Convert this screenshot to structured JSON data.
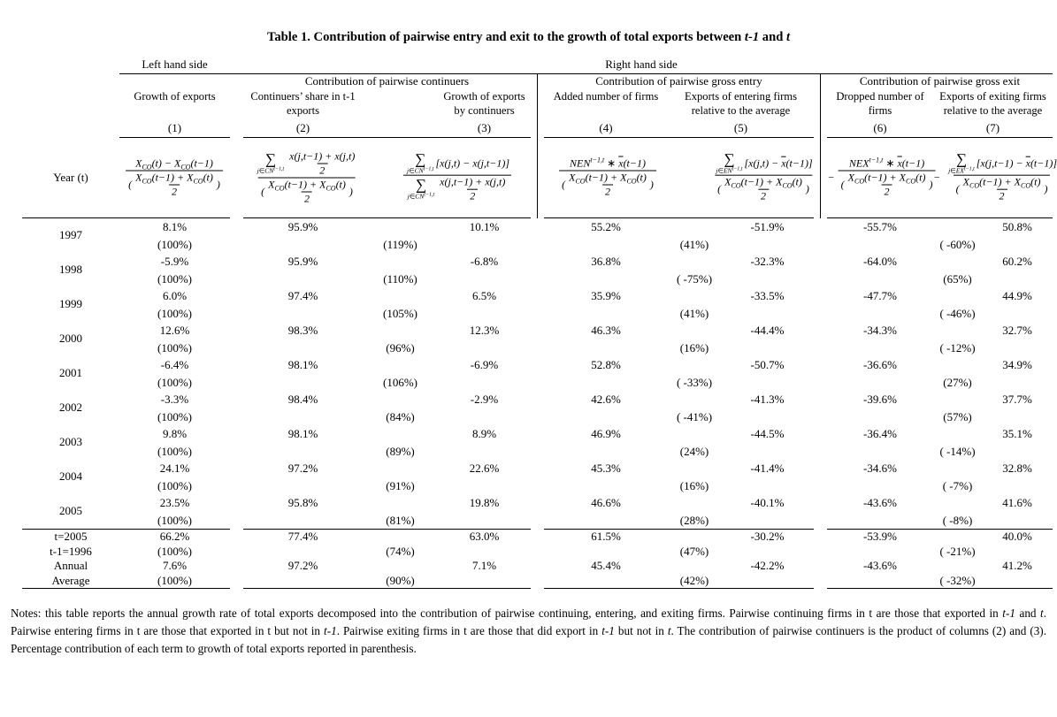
{
  "title_segments": [
    {
      "text": "Table 1. Contribution of pairwise entry and exit to the growth of total exports between "
    },
    {
      "text": "t-1",
      "italic": true
    },
    {
      "text": " and "
    },
    {
      "text": "t",
      "italic": true
    }
  ],
  "header": {
    "lhs": "Left hand side",
    "rhs": "Right hand side",
    "col1_title": "Growth of exports",
    "col1_num": "(1)",
    "year_label": "Year (t)",
    "groups": [
      {
        "label": "Contribution of pairwise continuers",
        "cols": [
          {
            "title": "Continuers’ share in t-1 exports",
            "num": "(2)"
          },
          {
            "title": "Growth of exports by continuers",
            "num": "(3)"
          }
        ]
      },
      {
        "label": "Contribution of pairwise gross entry",
        "cols": [
          {
            "title": "Added number of firms",
            "num": "(4)"
          },
          {
            "title": "Exports of entering firms relative to the average",
            "num": "(5)"
          }
        ]
      },
      {
        "label": "Contribution of pairwise gross exit",
        "cols": [
          {
            "title": "Dropped number of firms",
            "num": "(6)"
          },
          {
            "title": "Exports of exiting firms relative to the average",
            "num": "(7)"
          }
        ]
      }
    ]
  },
  "formulas": {
    "den": {
      "t": "row",
      "c": [
        "(",
        {
          "t": "frac",
          "n": {
            "t": "row",
            "c": [
              "X",
              {
                "t": "sub",
                "v": "CO"
              },
              "(t−1) + X",
              {
                "t": "sub",
                "v": "CO"
              },
              "(t)"
            ]
          },
          "d": "2"
        },
        ")"
      ]
    },
    "c1": {
      "t": "frac",
      "n": {
        "t": "row",
        "c": [
          "X",
          {
            "t": "sub",
            "v": "CO"
          },
          "(t) − X",
          {
            "t": "sub",
            "v": "CO"
          },
          "(t−1)"
        ]
      },
      "d": {
        "t": "ref",
        "k": "den"
      }
    },
    "c2": {
      "t": "frac",
      "n": {
        "t": "row",
        "c": [
          {
            "t": "sum",
            "b": {
              "t": "row",
              "c": [
                "j∈CN",
                {
                  "t": "sup",
                  "v": "t−1,t"
                }
              ]
            }
          },
          {
            "t": "frac",
            "n": "x(j,t−1) + x(j,t)",
            "d": "2"
          }
        ]
      },
      "d": {
        "t": "ref",
        "k": "den"
      }
    },
    "c3": {
      "t": "frac",
      "n": {
        "t": "row",
        "c": [
          {
            "t": "sum",
            "b": {
              "t": "row",
              "c": [
                "j∈CN",
                {
                  "t": "sup",
                  "v": "t−1,t"
                }
              ]
            }
          },
          "[x(j,t) − x(j,t−1)]"
        ]
      },
      "d": {
        "t": "row",
        "c": [
          {
            "t": "sum",
            "b": {
              "t": "row",
              "c": [
                "j∈CN",
                {
                  "t": "sup",
                  "v": "t−1,t"
                }
              ]
            }
          },
          {
            "t": "frac",
            "n": "x(j,t−1) + x(j,t)",
            "d": "2"
          }
        ]
      }
    },
    "c4": {
      "t": "frac",
      "n": {
        "t": "row",
        "c": [
          "NEN",
          {
            "t": "sup",
            "v": "t−1,t"
          },
          " ∗ ",
          {
            "t": "bar",
            "v": "x"
          },
          "(t−1)"
        ]
      },
      "d": {
        "t": "ref",
        "k": "den"
      }
    },
    "c5": {
      "t": "frac",
      "n": {
        "t": "row",
        "c": [
          {
            "t": "sum",
            "b": {
              "t": "row",
              "c": [
                "j∈EN",
                {
                  "t": "sup",
                  "v": "t−1,t"
                }
              ]
            }
          },
          "[x(j,t) − ",
          {
            "t": "bar",
            "v": "x"
          },
          "(t−1)]"
        ]
      },
      "d": {
        "t": "ref",
        "k": "den"
      }
    },
    "c6": {
      "t": "row",
      "c": [
        "− ",
        {
          "t": "frac",
          "n": {
            "t": "row",
            "c": [
              "NEX",
              {
                "t": "sup",
                "v": "t−1,t"
              },
              " ∗ ",
              {
                "t": "bar",
                "v": "x"
              },
              "(t−1)"
            ]
          },
          "d": {
            "t": "ref",
            "k": "den"
          }
        }
      ]
    },
    "c7": {
      "t": "row",
      "c": [
        "− ",
        {
          "t": "frac",
          "n": {
            "t": "row",
            "c": [
              {
                "t": "sum",
                "b": {
                  "t": "row",
                  "c": [
                    "j∈EX",
                    {
                      "t": "sup",
                      "v": "t−1,t"
                    }
                  ]
                }
              },
              "[x(j,t−1) − ",
              {
                "t": "bar",
                "v": "x"
              },
              "(t−1)]"
            ]
          },
          "d": {
            "t": "ref",
            "k": "den"
          }
        }
      ]
    }
  },
  "rows": [
    {
      "section": "body",
      "year": [
        "1997"
      ],
      "c1": "8.1%",
      "c1p": "(100%)",
      "c2": "95.9%",
      "c23p": "(119%)",
      "c3": "10.1%",
      "c4": "55.2%",
      "c45p": "(41%)",
      "c5": "-51.9%",
      "c6": "-55.7%",
      "c67p": "( -60%)",
      "c7": "50.8%"
    },
    {
      "section": "body",
      "year": [
        "1998"
      ],
      "c1": "-5.9%",
      "c1p": "(100%)",
      "c2": "95.9%",
      "c23p": "(110%)",
      "c3": "-6.8%",
      "c4": "36.8%",
      "c45p": "( -75%)",
      "c5": "-32.3%",
      "c6": "-64.0%",
      "c67p": "(65%)",
      "c7": "60.2%"
    },
    {
      "section": "body",
      "year": [
        "1999"
      ],
      "c1": "6.0%",
      "c1p": "(100%)",
      "c2": "97.4%",
      "c23p": "(105%)",
      "c3": "6.5%",
      "c4": "35.9%",
      "c45p": "(41%)",
      "c5": "-33.5%",
      "c6": "-47.7%",
      "c67p": "( -46%)",
      "c7": "44.9%"
    },
    {
      "section": "body",
      "year": [
        "2000"
      ],
      "c1": "12.6%",
      "c1p": "(100%)",
      "c2": "98.3%",
      "c23p": "(96%)",
      "c3": "12.3%",
      "c4": "46.3%",
      "c45p": "(16%)",
      "c5": "-44.4%",
      "c6": "-34.3%",
      "c67p": "( -12%)",
      "c7": "32.7%"
    },
    {
      "section": "body",
      "year": [
        "2001"
      ],
      "c1": "-6.4%",
      "c1p": "(100%)",
      "c2": "98.1%",
      "c23p": "(106%)",
      "c3": "-6.9%",
      "c4": "52.8%",
      "c45p": "( -33%)",
      "c5": "-50.7%",
      "c6": "-36.6%",
      "c67p": "(27%)",
      "c7": "34.9%"
    },
    {
      "section": "body",
      "year": [
        "2002"
      ],
      "c1": "-3.3%",
      "c1p": "(100%)",
      "c2": "98.4%",
      "c23p": "(84%)",
      "c3": "-2.9%",
      "c4": "42.6%",
      "c45p": "( -41%)",
      "c5": "-41.3%",
      "c6": "-39.6%",
      "c67p": "(57%)",
      "c7": "37.7%"
    },
    {
      "section": "body",
      "year": [
        "2003"
      ],
      "c1": "9.8%",
      "c1p": "(100%)",
      "c2": "98.1%",
      "c23p": "(89%)",
      "c3": "8.9%",
      "c4": "46.9%",
      "c45p": "(24%)",
      "c5": "-44.5%",
      "c6": "-36.4%",
      "c67p": "( -14%)",
      "c7": "35.1%"
    },
    {
      "section": "body",
      "year": [
        "2004"
      ],
      "c1": "24.1%",
      "c1p": "(100%)",
      "c2": "97.2%",
      "c23p": "(91%)",
      "c3": "22.6%",
      "c4": "45.3%",
      "c45p": "(16%)",
      "c5": "-41.4%",
      "c6": "-34.6%",
      "c67p": "( -7%)",
      "c7": "32.8%"
    },
    {
      "section": "body",
      "year": [
        "2005"
      ],
      "c1": "23.5%",
      "c1p": "(100%)",
      "c2": "95.8%",
      "c23p": "(81%)",
      "c3": "19.8%",
      "c4": "46.6%",
      "c45p": "(28%)",
      "c5": "-40.1%",
      "c6": "-43.6%",
      "c67p": "( -8%)",
      "c7": "41.6%"
    },
    {
      "section": "summary",
      "year": [
        "t=2005",
        "t-1=1996"
      ],
      "c1": "66.2%",
      "c1p": "(100%)",
      "c2": "77.4%",
      "c23p": "(74%)",
      "c3": "63.0%",
      "c4": "61.5%",
      "c45p": "(47%)",
      "c5": "-30.2%",
      "c6": "-53.9%",
      "c67p": "( -21%)",
      "c7": "40.0%"
    },
    {
      "section": "summary",
      "year": [
        "Annual",
        "Average"
      ],
      "c1": "7.6%",
      "c1p": "(100%)",
      "c2": "97.2%",
      "c23p": "(90%)",
      "c3": "7.1%",
      "c4": "45.4%",
      "c45p": "(42%)",
      "c5": "-42.2%",
      "c6": "-43.6%",
      "c67p": "( -32%)",
      "c7": "41.2%"
    }
  ],
  "notes_segments": [
    {
      "text": "Notes: this table reports the annual growth rate of total exports decomposed into the contribution of pairwise continuing, entering, and exiting firms. Pairwise continuing firms in t are those that exported in "
    },
    {
      "text": "t-1",
      "italic": true
    },
    {
      "text": " and "
    },
    {
      "text": "t",
      "italic": true
    },
    {
      "text": ". Pairwise entering firms in t are those that exported in t but not in "
    },
    {
      "text": "t-1",
      "italic": true
    },
    {
      "text": ". Pairwise exiting firms in t are those that did export in "
    },
    {
      "text": "t-1",
      "italic": true
    },
    {
      "text": " but not in "
    },
    {
      "text": "t",
      "italic": true
    },
    {
      "text": ".  The contribution of pairwise continuers is the product of columns (2) and (3). Percentage contribution of each term to growth of total exports reported in parenthesis."
    }
  ]
}
